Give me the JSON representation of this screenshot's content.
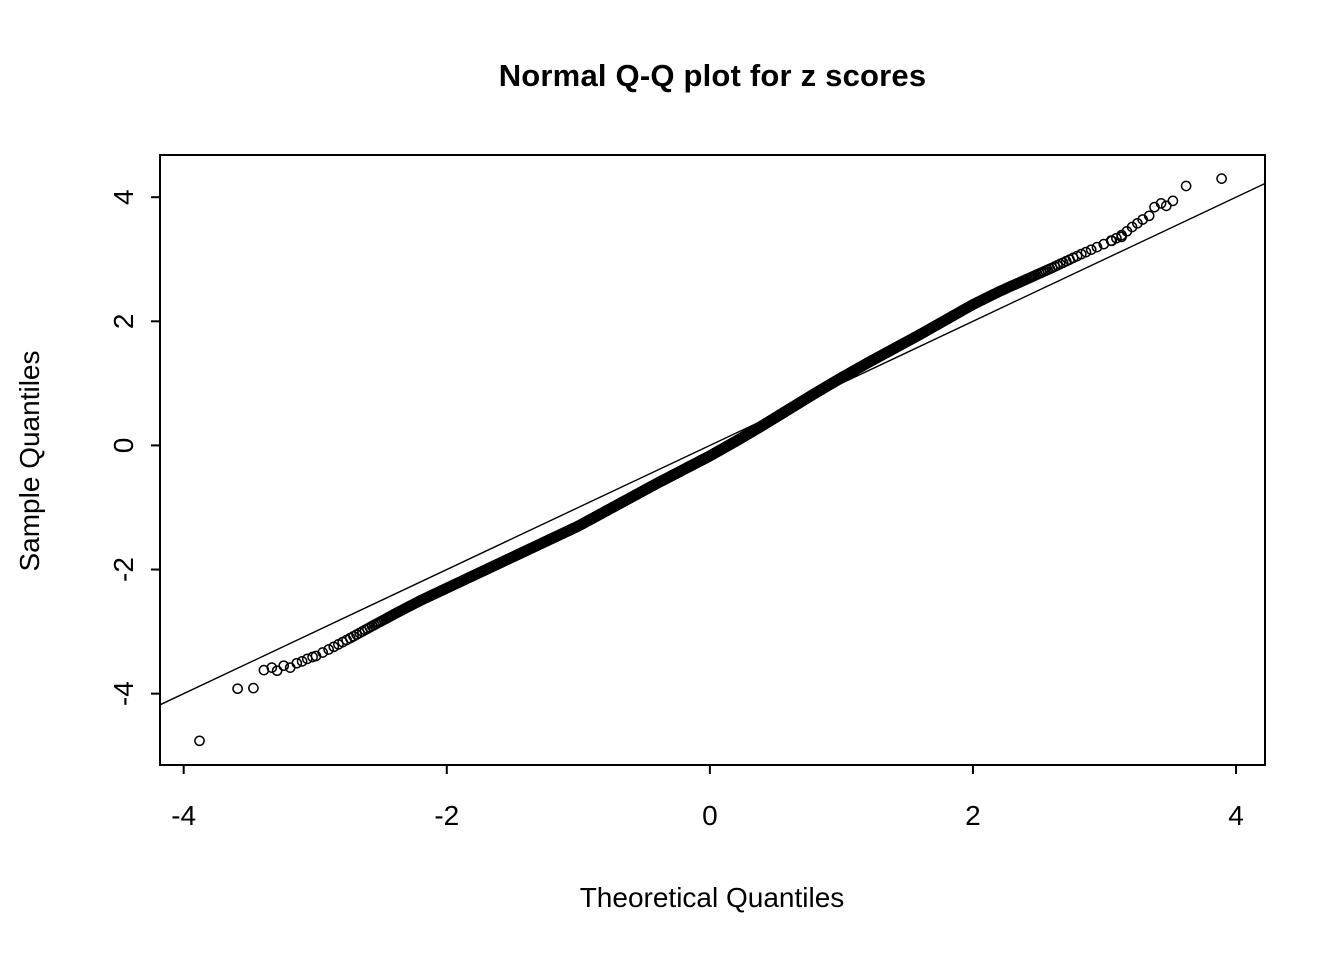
{
  "chart_data": {
    "type": "scatter",
    "title": "Normal Q-Q plot for z scores",
    "xlabel": "Theoretical Quantiles",
    "ylabel": "Sample Quantiles",
    "xlim": [
      -4.18,
      4.22
    ],
    "ylim": [
      -5.15,
      4.68
    ],
    "x_ticks": [
      -4,
      -2,
      0,
      2,
      4
    ],
    "y_ticks": [
      -4,
      -2,
      0,
      2,
      4
    ],
    "grid": false,
    "legend": "none",
    "marker": "open-circle",
    "marker_radius_px": 4.6,
    "approx_point_count": 4000,
    "colors": {
      "points": "#000000",
      "line": "#000000",
      "text": "#000000",
      "background": "#ffffff"
    },
    "reference_line": {
      "slope": 1,
      "intercept": 0
    },
    "curve_anchors": [
      [
        -3.0,
        -3.4
      ],
      [
        -2.8,
        -3.18
      ],
      [
        -2.6,
        -2.95
      ],
      [
        -2.4,
        -2.72
      ],
      [
        -2.2,
        -2.5
      ],
      [
        -2.0,
        -2.3
      ],
      [
        -1.8,
        -2.1
      ],
      [
        -1.6,
        -1.9
      ],
      [
        -1.4,
        -1.7
      ],
      [
        -1.2,
        -1.5
      ],
      [
        -1.0,
        -1.3
      ],
      [
        -0.8,
        -1.07
      ],
      [
        -0.6,
        -0.84
      ],
      [
        -0.4,
        -0.61
      ],
      [
        -0.2,
        -0.39
      ],
      [
        0.0,
        -0.17
      ],
      [
        0.2,
        0.07
      ],
      [
        0.4,
        0.32
      ],
      [
        0.6,
        0.58
      ],
      [
        0.8,
        0.84
      ],
      [
        1.0,
        1.09
      ],
      [
        1.2,
        1.33
      ],
      [
        1.4,
        1.56
      ],
      [
        1.6,
        1.79
      ],
      [
        1.8,
        2.03
      ],
      [
        2.0,
        2.27
      ],
      [
        2.2,
        2.48
      ],
      [
        2.4,
        2.67
      ],
      [
        2.6,
        2.86
      ],
      [
        2.8,
        3.06
      ],
      [
        3.0,
        3.25
      ],
      [
        3.2,
        3.42
      ]
    ],
    "lower_tail_points": [
      [
        -3.88,
        -4.76
      ],
      [
        -3.59,
        -3.92
      ],
      [
        -3.47,
        -3.91
      ],
      [
        -3.39,
        -3.62
      ],
      [
        -3.33,
        -3.58
      ],
      [
        -3.29,
        -3.63
      ],
      [
        -3.24,
        -3.55
      ],
      [
        -3.19,
        -3.58
      ],
      [
        -3.14,
        -3.51
      ],
      [
        -3.1,
        -3.48
      ],
      [
        -3.06,
        -3.44
      ],
      [
        -3.02,
        -3.41
      ]
    ],
    "upper_tail_points": [
      [
        3.05,
        3.3
      ],
      [
        3.09,
        3.34
      ],
      [
        3.13,
        3.39
      ],
      [
        3.17,
        3.45
      ],
      [
        3.21,
        3.52
      ],
      [
        3.25,
        3.58
      ],
      [
        3.29,
        3.64
      ],
      [
        3.34,
        3.7
      ],
      [
        3.38,
        3.84
      ],
      [
        3.43,
        3.9
      ],
      [
        3.47,
        3.86
      ],
      [
        3.52,
        3.94
      ],
      [
        3.62,
        4.18
      ],
      [
        3.89,
        4.3
      ]
    ]
  }
}
